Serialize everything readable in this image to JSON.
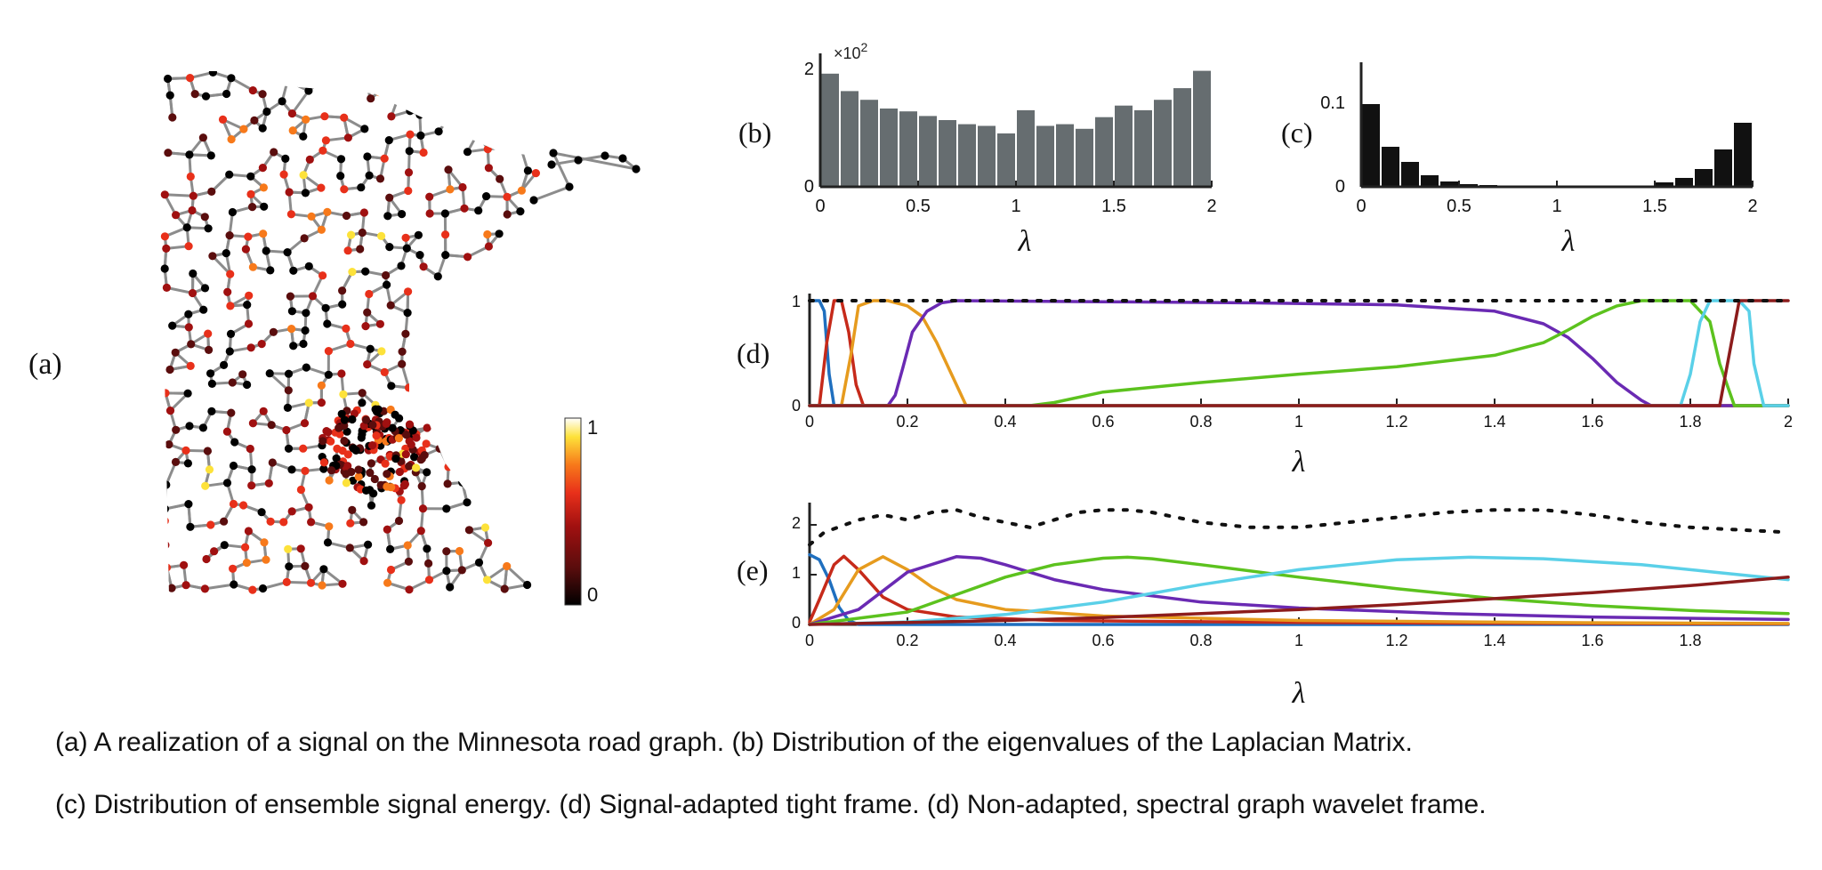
{
  "panels": {
    "a": {
      "label": "(a)",
      "colorbar": {
        "max_label": "1",
        "min_label": "0"
      },
      "colors": {
        "edge": "#8c8c8c",
        "colormap": [
          "#000000",
          "#5a0d0d",
          "#a01010",
          "#e8301a",
          "#f7791a",
          "#fde23a",
          "#ffffff"
        ]
      }
    },
    "b": {
      "label": "(b)",
      "multiplier": "×10",
      "multiplier_exp": "2",
      "ytick_labels": [
        "0",
        "2"
      ],
      "xtick_labels": [
        "0",
        "0.5",
        "1",
        "1.5",
        "2"
      ],
      "xlabel": "λ"
    },
    "c": {
      "label": "(c)",
      "ytick_labels": [
        "0",
        "0.1"
      ],
      "xtick_labels": [
        "0",
        "0.5",
        "1",
        "1.5",
        "2"
      ],
      "xlabel": "λ"
    },
    "d": {
      "label": "(d)",
      "ytick_labels": [
        "0",
        "1"
      ],
      "xtick_labels": [
        "0",
        "0.2",
        "0.4",
        "0.6",
        "0.8",
        "1",
        "1.2",
        "1.4",
        "1.6",
        "1.8",
        "2"
      ],
      "xlabel": "λ"
    },
    "e": {
      "label": "(e)",
      "ytick_labels": [
        "0",
        "1",
        "2"
      ],
      "xtick_labels": [
        "0",
        "0.2",
        "0.4",
        "0.6",
        "0.8",
        "1",
        "1.2",
        "1.4",
        "1.6",
        "1.8"
      ],
      "xlabel": "λ"
    }
  },
  "captions": {
    "line1": "(a) A realization of a signal on the Minnesota road graph. (b) Distribution of the eigenvalues of the Laplacian Matrix.",
    "line2": "(c) Distribution of ensemble signal energy. (d) Signal-adapted tight frame. (d) Non-adapted, spectral graph wavelet frame."
  },
  "chart_data": [
    {
      "panel": "b",
      "type": "bar",
      "x": [
        0.05,
        0.15,
        0.25,
        0.35,
        0.45,
        0.55,
        0.65,
        0.75,
        0.85,
        0.95,
        1.05,
        1.15,
        1.25,
        1.35,
        1.45,
        1.55,
        1.65,
        1.75,
        1.85,
        1.95
      ],
      "values": [
        195,
        165,
        150,
        135,
        130,
        122,
        115,
        108,
        105,
        92,
        132,
        105,
        108,
        100,
        120,
        140,
        132,
        150,
        170,
        200
      ],
      "ylim": [
        0,
        230
      ],
      "xlim": [
        0,
        2
      ],
      "color": "#666d70"
    },
    {
      "panel": "c",
      "type": "bar",
      "x": [
        0.05,
        0.15,
        0.25,
        0.35,
        0.45,
        0.55,
        0.65,
        0.75,
        0.85,
        0.95,
        1.05,
        1.15,
        1.25,
        1.35,
        1.45,
        1.55,
        1.65,
        1.75,
        1.85,
        1.95
      ],
      "values": [
        0.093,
        0.045,
        0.028,
        0.013,
        0.006,
        0.003,
        0.002,
        0.001,
        0.001,
        0.0005,
        0.0005,
        0.0005,
        0.0005,
        0.001,
        0.001,
        0.005,
        0.01,
        0.02,
        0.042,
        0.072
      ],
      "ylim": [
        0,
        0.14
      ],
      "xlim": [
        0,
        2
      ],
      "color": "#111111"
    },
    {
      "panel": "d",
      "type": "line",
      "xlim": [
        0,
        2
      ],
      "ylim": [
        0,
        1
      ],
      "series": [
        {
          "color": "#1f6fbf",
          "x": [
            0,
            0.02,
            0.03,
            0.04,
            0.05,
            2
          ],
          "y": [
            1,
            1,
            0.9,
            0.3,
            0,
            0
          ]
        },
        {
          "color": "#c62a1a",
          "x": [
            0,
            0.02,
            0.035,
            0.05,
            0.065,
            0.08,
            0.095,
            0.11,
            2
          ],
          "y": [
            0,
            0,
            0.6,
            1,
            1,
            0.7,
            0.2,
            0,
            0
          ]
        },
        {
          "color": "#e69b1e",
          "x": [
            0,
            0.065,
            0.085,
            0.1,
            0.13,
            0.16,
            0.2,
            0.23,
            0.26,
            0.3,
            0.32,
            2
          ],
          "y": [
            0,
            0,
            0.5,
            0.95,
            1,
            1,
            0.95,
            0.85,
            0.6,
            0.2,
            0,
            0
          ]
        },
        {
          "color": "#6a2ab3",
          "x": [
            0,
            0.16,
            0.175,
            0.19,
            0.21,
            0.24,
            0.27,
            0.3,
            0.6,
            0.9,
            1.2,
            1.4,
            1.5,
            1.55,
            1.6,
            1.65,
            1.7,
            1.72,
            2
          ],
          "y": [
            0,
            0,
            0.1,
            0.35,
            0.7,
            0.9,
            0.98,
            1,
            0.99,
            0.98,
            0.96,
            0.9,
            0.78,
            0.65,
            0.45,
            0.22,
            0.05,
            0,
            0
          ]
        },
        {
          "color": "#5cc21e",
          "x": [
            0,
            0.45,
            0.5,
            0.6,
            0.8,
            1.0,
            1.2,
            1.4,
            1.5,
            1.55,
            1.6,
            1.65,
            1.7,
            1.8,
            1.84,
            1.86,
            1.89,
            2
          ],
          "y": [
            0,
            0,
            0.03,
            0.13,
            0.22,
            0.3,
            0.37,
            0.48,
            0.6,
            0.72,
            0.85,
            0.95,
            1,
            1,
            0.8,
            0.4,
            0,
            0
          ]
        },
        {
          "color": "#5ad0e8",
          "x": [
            0,
            1.78,
            1.8,
            1.82,
            1.84,
            1.86,
            1.9,
            1.92,
            1.93,
            1.95,
            2
          ],
          "y": [
            0,
            0,
            0.3,
            0.8,
            1,
            1,
            1,
            0.9,
            0.4,
            0,
            0
          ]
        },
        {
          "color": "#8c1c1c",
          "x": [
            0,
            1.86,
            1.88,
            1.9,
            1.93,
            1.95,
            2
          ],
          "y": [
            0,
            0,
            0.5,
            1,
            1,
            1,
            1
          ]
        },
        {
          "color": "#111111",
          "dashed": true,
          "x": [
            0,
            2
          ],
          "y": [
            1,
            1
          ]
        }
      ]
    },
    {
      "panel": "e",
      "type": "line",
      "xlim": [
        0,
        2
      ],
      "ylim": [
        0,
        2.5
      ],
      "series": [
        {
          "color": "#1f6fbf",
          "x": [
            0,
            0.02,
            0.04,
            0.06,
            0.08,
            0.1,
            2
          ],
          "y": [
            1.4,
            1.3,
            0.9,
            0.35,
            0.08,
            0,
            0
          ]
        },
        {
          "color": "#c62a1a",
          "x": [
            0,
            0.02,
            0.05,
            0.07,
            0.1,
            0.15,
            0.2,
            0.3,
            0.5,
            1.0,
            1.5,
            2
          ],
          "y": [
            0.05,
            0.5,
            1.2,
            1.37,
            1.1,
            0.55,
            0.3,
            0.15,
            0.08,
            0.04,
            0.02,
            0.01
          ]
        },
        {
          "color": "#e69b1e",
          "x": [
            0,
            0.05,
            0.1,
            0.15,
            0.2,
            0.25,
            0.3,
            0.4,
            0.6,
            1.0,
            1.5,
            2
          ],
          "y": [
            0,
            0.3,
            1.1,
            1.36,
            1.1,
            0.75,
            0.5,
            0.3,
            0.17,
            0.08,
            0.04,
            0.02
          ]
        },
        {
          "color": "#6a2ab3",
          "x": [
            0,
            0.1,
            0.2,
            0.3,
            0.35,
            0.4,
            0.5,
            0.6,
            0.8,
            1.0,
            1.3,
            1.6,
            2
          ],
          "y": [
            0,
            0.3,
            1.05,
            1.36,
            1.33,
            1.2,
            0.9,
            0.7,
            0.45,
            0.33,
            0.22,
            0.15,
            0.1
          ]
        },
        {
          "color": "#5cc21e",
          "x": [
            0,
            0.2,
            0.3,
            0.4,
            0.5,
            0.6,
            0.65,
            0.7,
            0.8,
            1.0,
            1.2,
            1.4,
            1.6,
            1.8,
            2
          ],
          "y": [
            0,
            0.25,
            0.6,
            0.95,
            1.2,
            1.33,
            1.35,
            1.32,
            1.2,
            0.95,
            0.72,
            0.52,
            0.38,
            0.28,
            0.22
          ]
        },
        {
          "color": "#5ad0e8",
          "x": [
            0,
            0.2,
            0.4,
            0.6,
            0.8,
            1.0,
            1.2,
            1.35,
            1.5,
            1.7,
            1.85,
            2
          ],
          "y": [
            0,
            0.05,
            0.2,
            0.45,
            0.8,
            1.1,
            1.3,
            1.35,
            1.32,
            1.2,
            1.05,
            0.9
          ]
        },
        {
          "color": "#8c1c1c",
          "x": [
            0,
            0.4,
            0.6,
            0.8,
            1.0,
            1.2,
            1.4,
            1.6,
            1.8,
            2
          ],
          "y": [
            0,
            0.08,
            0.14,
            0.22,
            0.3,
            0.4,
            0.52,
            0.64,
            0.78,
            0.95
          ]
        },
        {
          "color": "#111111",
          "dashed": true,
          "x": [
            0,
            0.03,
            0.1,
            0.15,
            0.2,
            0.25,
            0.3,
            0.35,
            0.4,
            0.45,
            0.5,
            0.55,
            0.6,
            0.65,
            0.7,
            0.75,
            0.8,
            0.9,
            1.0,
            1.1,
            1.2,
            1.3,
            1.4,
            1.5,
            1.6,
            1.7,
            1.8,
            1.9,
            2
          ],
          "y": [
            1.6,
            1.85,
            2.1,
            2.2,
            2.1,
            2.25,
            2.3,
            2.15,
            2.05,
            1.95,
            2.1,
            2.25,
            2.3,
            2.3,
            2.25,
            2.15,
            2.05,
            1.95,
            1.95,
            2.05,
            2.15,
            2.25,
            2.3,
            2.3,
            2.2,
            2.05,
            1.95,
            1.9,
            1.85
          ]
        }
      ]
    }
  ]
}
